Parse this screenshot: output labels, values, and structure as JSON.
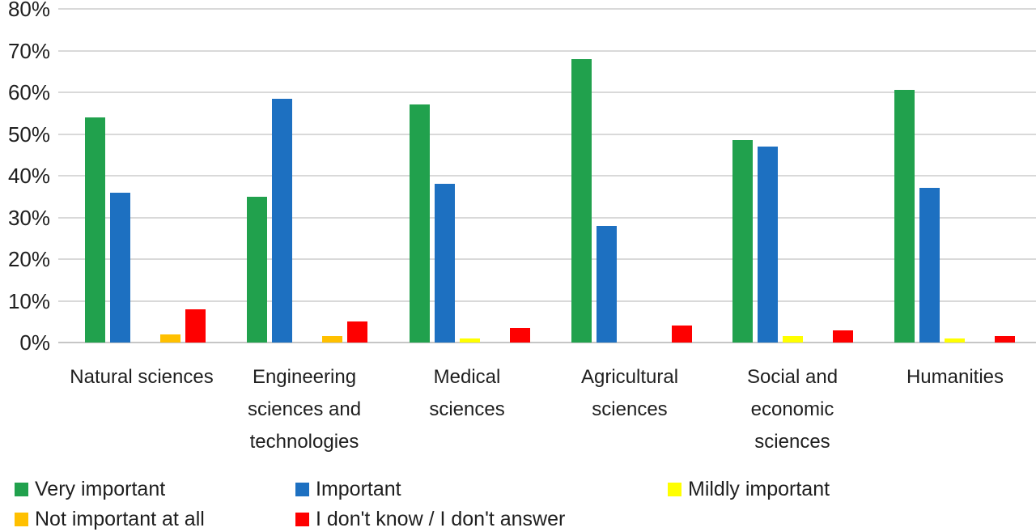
{
  "chart_data": {
    "type": "bar",
    "title": "",
    "xlabel": "",
    "ylabel": "",
    "ylim": [
      0,
      80
    ],
    "ytick_labels": [
      "0%",
      "10%",
      "20%",
      "30%",
      "40%",
      "50%",
      "60%",
      "70%",
      "80%"
    ],
    "ytick_values": [
      0,
      10,
      20,
      30,
      40,
      50,
      60,
      70,
      80
    ],
    "grid": "horizontal",
    "legend_position": "bottom",
    "categories": [
      "Natural sciences",
      "Engineering sciences and technologies",
      "Medical sciences",
      "Agricultural sciences",
      "Social and economic sciences",
      "Humanities"
    ],
    "category_lines": [
      [
        "Natural sciences"
      ],
      [
        "Engineering",
        "sciences and",
        "technologies"
      ],
      [
        "Medical",
        "sciences"
      ],
      [
        "Agricultural",
        "sciences"
      ],
      [
        "Social and",
        "economic",
        "sciences"
      ],
      [
        "Humanities"
      ]
    ],
    "series": [
      {
        "name": "Very important",
        "color": "#21A14D",
        "values": [
          54,
          35,
          57,
          68,
          48.5,
          60.5
        ]
      },
      {
        "name": "Important",
        "color": "#1D70C1",
        "values": [
          36,
          58.5,
          38,
          28,
          47,
          37
        ]
      },
      {
        "name": "Mildly important",
        "color": "#FFFF00",
        "values": [
          0,
          0,
          1,
          0,
          1.5,
          1
        ]
      },
      {
        "name": "Not important at all",
        "color": "#FFC000",
        "values": [
          2,
          1.5,
          0,
          0,
          0,
          0
        ]
      },
      {
        "name": "I don't know / I don't answer",
        "color": "#FE0000",
        "values": [
          8,
          5,
          3.5,
          4,
          3,
          1.5
        ]
      }
    ]
  },
  "colors": {
    "background": "#FFFFFF",
    "gridline": "#D9D9D9",
    "axis_baseline": "#C6C6C6",
    "text": "#1F1F1F"
  }
}
